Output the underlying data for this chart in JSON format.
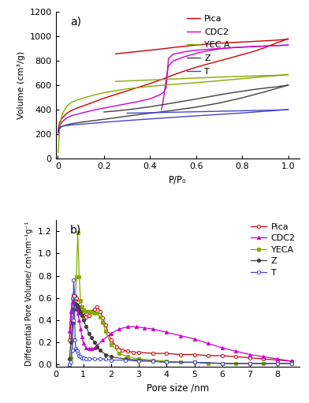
{
  "plot_a": {
    "title": "a)",
    "xlabel": "P/P₀",
    "ylabel": "Volume (cm³/g)",
    "ylim": [
      0,
      1200
    ],
    "xlim": [
      -0.01,
      1.05
    ],
    "yticks": [
      0,
      200,
      400,
      600,
      800,
      1000,
      1200
    ],
    "xticks": [
      0.0,
      0.2,
      0.4,
      0.6,
      0.8,
      1.0
    ],
    "series": {
      "Pica": {
        "color": "#cc0000",
        "adsorption_x": [
          0.001,
          0.003,
          0.005,
          0.008,
          0.01,
          0.015,
          0.02,
          0.03,
          0.04,
          0.05,
          0.06,
          0.08,
          0.1,
          0.15,
          0.2,
          0.25,
          0.3,
          0.35,
          0.4,
          0.45,
          0.5,
          0.55,
          0.6,
          0.65,
          0.7,
          0.75,
          0.8,
          0.85,
          0.9,
          0.95,
          0.98,
          1.0
        ],
        "adsorption_y": [
          220,
          255,
          275,
          295,
          305,
          322,
          335,
          355,
          372,
          385,
          395,
          412,
          425,
          460,
          495,
          525,
          555,
          585,
          615,
          648,
          685,
          718,
          748,
          775,
          800,
          825,
          852,
          878,
          910,
          948,
          968,
          980
        ],
        "desorption_x": [
          1.0,
          0.98,
          0.95,
          0.9,
          0.85,
          0.8,
          0.75,
          0.7,
          0.65,
          0.6,
          0.55,
          0.5,
          0.45,
          0.4,
          0.35,
          0.3,
          0.25
        ],
        "desorption_y": [
          980,
          975,
          970,
          965,
          960,
          955,
          950,
          945,
          938,
          930,
          920,
          910,
          898,
          888,
          878,
          868,
          858
        ]
      },
      "CDC2": {
        "color": "#cc00cc",
        "adsorption_x": [
          0.001,
          0.003,
          0.005,
          0.01,
          0.02,
          0.04,
          0.06,
          0.08,
          0.1,
          0.15,
          0.2,
          0.25,
          0.3,
          0.35,
          0.4,
          0.44,
          0.46,
          0.47,
          0.475,
          0.48,
          0.5,
          0.55,
          0.6,
          0.65,
          0.7,
          0.75,
          0.8,
          0.85,
          0.9,
          0.95,
          1.0
        ],
        "adsorption_y": [
          195,
          228,
          250,
          275,
          305,
          335,
          352,
          362,
          372,
          395,
          415,
          432,
          450,
          468,
          490,
          520,
          545,
          580,
          700,
          820,
          855,
          875,
          888,
          895,
          902,
          908,
          913,
          918,
          922,
          926,
          930
        ],
        "desorption_x": [
          1.0,
          0.98,
          0.95,
          0.9,
          0.85,
          0.8,
          0.75,
          0.7,
          0.65,
          0.6,
          0.55,
          0.5,
          0.48,
          0.475,
          0.47,
          0.465,
          0.46,
          0.455,
          0.45
        ],
        "desorption_y": [
          930,
          928,
          926,
          922,
          918,
          913,
          908,
          898,
          882,
          862,
          835,
          800,
          758,
          710,
          648,
          580,
          510,
          455,
          400
        ]
      },
      "YEC A": {
        "color": "#88aa00",
        "adsorption_x": [
          0.001,
          0.003,
          0.005,
          0.007,
          0.01,
          0.015,
          0.02,
          0.04,
          0.06,
          0.08,
          0.1,
          0.15,
          0.2,
          0.3,
          0.4,
          0.5,
          0.6,
          0.7,
          0.8,
          0.9,
          1.0
        ],
        "adsorption_y": [
          50,
          120,
          180,
          230,
          285,
          335,
          372,
          432,
          462,
          478,
          490,
          518,
          540,
          572,
          592,
          608,
          622,
          638,
          655,
          672,
          688
        ],
        "desorption_x": [
          1.0,
          0.98,
          0.95,
          0.9,
          0.85,
          0.8,
          0.75,
          0.7,
          0.65,
          0.6,
          0.55,
          0.5,
          0.45,
          0.4,
          0.35,
          0.3,
          0.25
        ],
        "desorption_y": [
          688,
          686,
          683,
          680,
          677,
          674,
          671,
          668,
          664,
          660,
          656,
          652,
          648,
          644,
          640,
          636,
          632
        ]
      },
      "Z": {
        "color": "#404040",
        "adsorption_x": [
          0.001,
          0.003,
          0.005,
          0.01,
          0.02,
          0.04,
          0.06,
          0.08,
          0.1,
          0.15,
          0.2,
          0.3,
          0.4,
          0.5,
          0.6,
          0.7,
          0.8,
          0.9,
          0.95,
          1.0
        ],
        "adsorption_y": [
          218,
          232,
          242,
          255,
          265,
          278,
          286,
          292,
          298,
          310,
          322,
          348,
          372,
          395,
          422,
          455,
          498,
          548,
          575,
          602
        ],
        "desorption_x": [
          1.0,
          0.98,
          0.95,
          0.9,
          0.85,
          0.8,
          0.75,
          0.7,
          0.65,
          0.6,
          0.55,
          0.5,
          0.45,
          0.4,
          0.35,
          0.3,
          0.25,
          0.2
        ],
        "desorption_y": [
          602,
          596,
          588,
          578,
          566,
          552,
          538,
          522,
          505,
          488,
          472,
          456,
          440,
          425,
          412,
          400,
          390,
          382
        ]
      },
      "T": {
        "color": "#4444cc",
        "adsorption_x": [
          0.001,
          0.003,
          0.005,
          0.01,
          0.02,
          0.04,
          0.06,
          0.08,
          0.1,
          0.15,
          0.2,
          0.3,
          0.4,
          0.5,
          0.6,
          0.7,
          0.8,
          0.9,
          0.95,
          1.0
        ],
        "adsorption_y": [
          238,
          248,
          254,
          260,
          266,
          272,
          276,
          279,
          282,
          290,
          298,
          312,
          325,
          338,
          350,
          362,
          374,
          388,
          395,
          402
        ],
        "desorption_x": [
          1.0,
          0.98,
          0.95,
          0.9,
          0.85,
          0.8,
          0.75,
          0.7,
          0.65,
          0.6,
          0.55,
          0.5,
          0.45,
          0.4,
          0.35,
          0.3
        ],
        "desorption_y": [
          402,
          400,
          398,
          396,
          394,
          392,
          390,
          388,
          386,
          384,
          382,
          380,
          378,
          376,
          374,
          372
        ]
      }
    }
  },
  "plot_b": {
    "title": "b)",
    "xlabel": "Pore size /nm",
    "ylabel": "Differential Pore Volume/ cm³nm⁻¹g⁻¹",
    "ylim": [
      -0.02,
      1.3
    ],
    "xlim": [
      0,
      8.8
    ],
    "yticks": [
      0.0,
      0.2,
      0.4,
      0.6,
      0.8,
      1.0,
      1.2
    ],
    "xticks": [
      0,
      1,
      2,
      3,
      4,
      5,
      6,
      7,
      8
    ],
    "series": {
      "Pica": {
        "color": "#cc0000",
        "marker": "o",
        "markerfacecolor": "white",
        "x": [
          0.5,
          0.55,
          0.6,
          0.65,
          0.7,
          0.75,
          0.8,
          0.85,
          0.9,
          0.95,
          1.0,
          1.1,
          1.2,
          1.3,
          1.4,
          1.5,
          1.6,
          1.7,
          1.8,
          1.9,
          2.0,
          2.2,
          2.4,
          2.6,
          2.8,
          3.0,
          3.5,
          4.0,
          4.5,
          5.0,
          5.5,
          6.0,
          6.5,
          7.0,
          7.5,
          8.0,
          8.5
        ],
        "y": [
          0.22,
          0.38,
          0.6,
          0.63,
          0.62,
          0.6,
          0.56,
          0.52,
          0.48,
          0.46,
          0.44,
          0.43,
          0.44,
          0.48,
          0.5,
          0.52,
          0.48,
          0.42,
          0.36,
          0.28,
          0.22,
          0.16,
          0.13,
          0.12,
          0.11,
          0.11,
          0.1,
          0.1,
          0.09,
          0.09,
          0.08,
          0.08,
          0.07,
          0.06,
          0.05,
          0.04,
          0.03
        ]
      },
      "CDC2": {
        "color": "#cc00cc",
        "marker": "^",
        "markerfacecolor": "#cc00cc",
        "x": [
          0.5,
          0.55,
          0.6,
          0.65,
          0.7,
          0.75,
          0.8,
          0.85,
          0.9,
          0.95,
          1.0,
          1.1,
          1.2,
          1.3,
          1.4,
          1.5,
          1.7,
          2.0,
          2.3,
          2.6,
          2.9,
          3.2,
          3.5,
          4.0,
          4.5,
          5.0,
          5.5,
          6.0,
          6.5,
          7.0,
          7.5,
          8.0,
          8.5
        ],
        "y": [
          0.3,
          0.48,
          0.56,
          0.57,
          0.55,
          0.5,
          0.46,
          0.4,
          0.32,
          0.25,
          0.19,
          0.15,
          0.14,
          0.14,
          0.15,
          0.17,
          0.22,
          0.28,
          0.32,
          0.34,
          0.34,
          0.33,
          0.32,
          0.29,
          0.26,
          0.23,
          0.19,
          0.15,
          0.12,
          0.09,
          0.07,
          0.05,
          0.03
        ]
      },
      "YECA": {
        "color": "#88aa00",
        "marker": "s",
        "markerfacecolor": "#88aa00",
        "x": [
          0.5,
          0.55,
          0.6,
          0.65,
          0.7,
          0.75,
          0.8,
          0.85,
          0.9,
          0.95,
          1.0,
          1.05,
          1.1,
          1.15,
          1.2,
          1.3,
          1.4,
          1.5,
          1.6,
          1.7,
          1.8,
          2.0,
          2.3,
          2.6,
          3.0,
          3.5,
          4.0,
          4.5,
          5.0,
          5.5,
          6.0,
          6.5,
          7.0,
          7.5,
          8.0,
          8.5
        ],
        "y": [
          0.0,
          0.06,
          0.22,
          0.38,
          0.56,
          0.79,
          1.19,
          0.79,
          0.58,
          0.52,
          0.49,
          0.48,
          0.48,
          0.48,
          0.48,
          0.47,
          0.46,
          0.46,
          0.43,
          0.38,
          0.3,
          0.18,
          0.1,
          0.07,
          0.05,
          0.04,
          0.03,
          0.02,
          0.02,
          0.01,
          0.01,
          0.01,
          0.01,
          0.01,
          0.01,
          0.01
        ]
      },
      "Z": {
        "color": "#404040",
        "marker": "o",
        "markerfacecolor": "#404040",
        "x": [
          0.5,
          0.55,
          0.6,
          0.65,
          0.7,
          0.75,
          0.8,
          0.85,
          0.9,
          0.95,
          1.0,
          1.1,
          1.2,
          1.3,
          1.4,
          1.5,
          1.6,
          1.8,
          2.0,
          2.5,
          3.0,
          3.5,
          4.0,
          5.0,
          6.0,
          7.0,
          8.0,
          8.5
        ],
        "y": [
          0.05,
          0.2,
          0.38,
          0.5,
          0.55,
          0.54,
          0.52,
          0.5,
          0.47,
          0.44,
          0.4,
          0.34,
          0.28,
          0.24,
          0.2,
          0.16,
          0.13,
          0.09,
          0.07,
          0.05,
          0.04,
          0.03,
          0.02,
          0.02,
          0.01,
          0.01,
          0.01,
          0.01
        ]
      },
      "T": {
        "color": "#4444cc",
        "marker": "o",
        "markerfacecolor": "white",
        "x": [
          0.5,
          0.55,
          0.6,
          0.63,
          0.65,
          0.68,
          0.7,
          0.73,
          0.75,
          0.78,
          0.8,
          0.85,
          0.9,
          0.95,
          1.0,
          1.1,
          1.2,
          1.4,
          1.6,
          1.8,
          2.0,
          2.5,
          3.0,
          3.5,
          4.0,
          5.0,
          6.0,
          7.0,
          8.0,
          8.5
        ],
        "y": [
          0.0,
          0.02,
          0.13,
          0.4,
          0.76,
          0.62,
          0.22,
          0.14,
          0.13,
          0.12,
          0.1,
          0.08,
          0.07,
          0.06,
          0.06,
          0.05,
          0.05,
          0.05,
          0.05,
          0.05,
          0.04,
          0.04,
          0.03,
          0.03,
          0.02,
          0.02,
          0.01,
          0.01,
          0.01,
          0.01
        ]
      }
    }
  }
}
